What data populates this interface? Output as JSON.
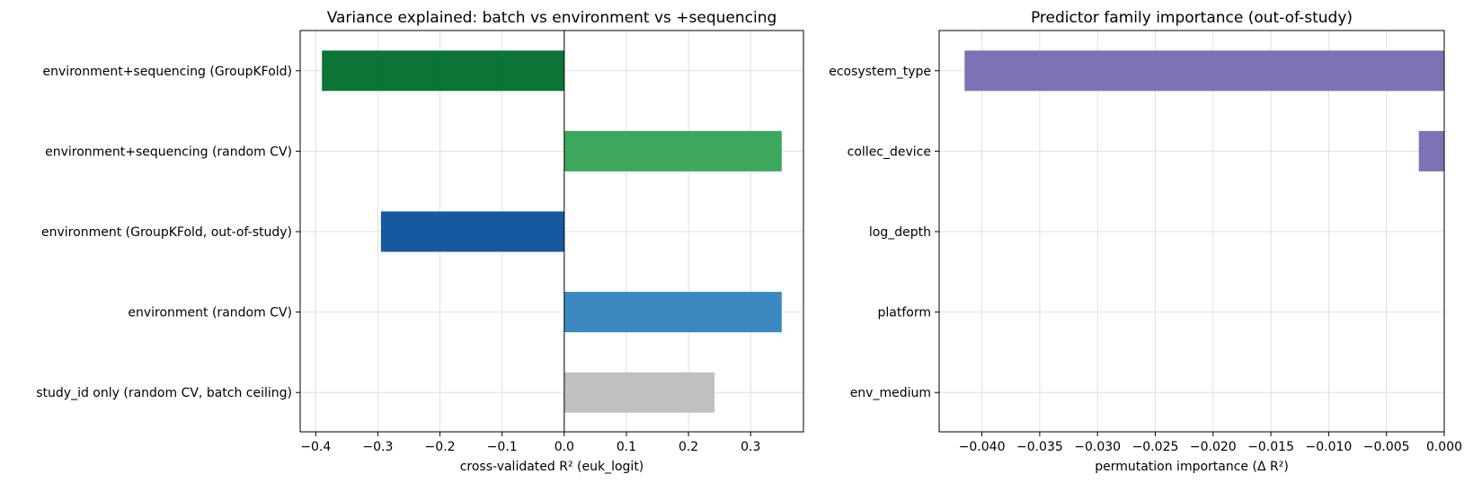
{
  "chart_data": [
    {
      "type": "bar",
      "orientation": "horizontal",
      "title": "Variance explained: batch vs environment vs +sequencing",
      "xlabel": "cross-validated R² (euk_logit)",
      "ylabel": "",
      "categories": [
        "environment+sequencing (GroupKFold)",
        "environment+sequencing (random CV)",
        "environment (GroupKFold, out-of-study)",
        "environment (random CV)",
        "study_id only (random CV, batch ceiling)"
      ],
      "values": [
        -0.39,
        0.35,
        -0.295,
        0.35,
        0.242
      ],
      "colors": [
        "#006d2c",
        "#31a354",
        "#08519c",
        "#3182bd",
        "#bdbdbd"
      ],
      "xlim": [
        -0.425,
        0.385
      ],
      "xticks": [
        -0.4,
        -0.3,
        -0.2,
        -0.1,
        0.0,
        0.1,
        0.2,
        0.3
      ],
      "xtick_labels": [
        "−0.4",
        "−0.3",
        "−0.2",
        "−0.1",
        "0.0",
        "0.1",
        "0.2",
        "0.3"
      ],
      "zero_line": true,
      "grid": true
    },
    {
      "type": "bar",
      "orientation": "horizontal",
      "title": "Predictor family importance (out-of-study)",
      "xlabel": "permutation importance (Δ R²)",
      "ylabel": "",
      "categories": [
        "ecosystem_type",
        "collec_device",
        "log_depth",
        "platform",
        "env_medium"
      ],
      "values": [
        -0.0415,
        -0.0022,
        0.0,
        0.0,
        0.0
      ],
      "colors": [
        "#756bb1",
        "#756bb1",
        "#756bb1",
        "#756bb1",
        "#756bb1"
      ],
      "xlim": [
        -0.0437,
        0.0
      ],
      "xticks": [
        -0.04,
        -0.035,
        -0.03,
        -0.025,
        -0.02,
        -0.015,
        -0.01,
        -0.005,
        0.0
      ],
      "xtick_labels": [
        "−0.040",
        "−0.035",
        "−0.030",
        "−0.025",
        "−0.020",
        "−0.015",
        "−0.010",
        "−0.005",
        "0.000"
      ],
      "zero_line": false,
      "grid": true
    }
  ]
}
